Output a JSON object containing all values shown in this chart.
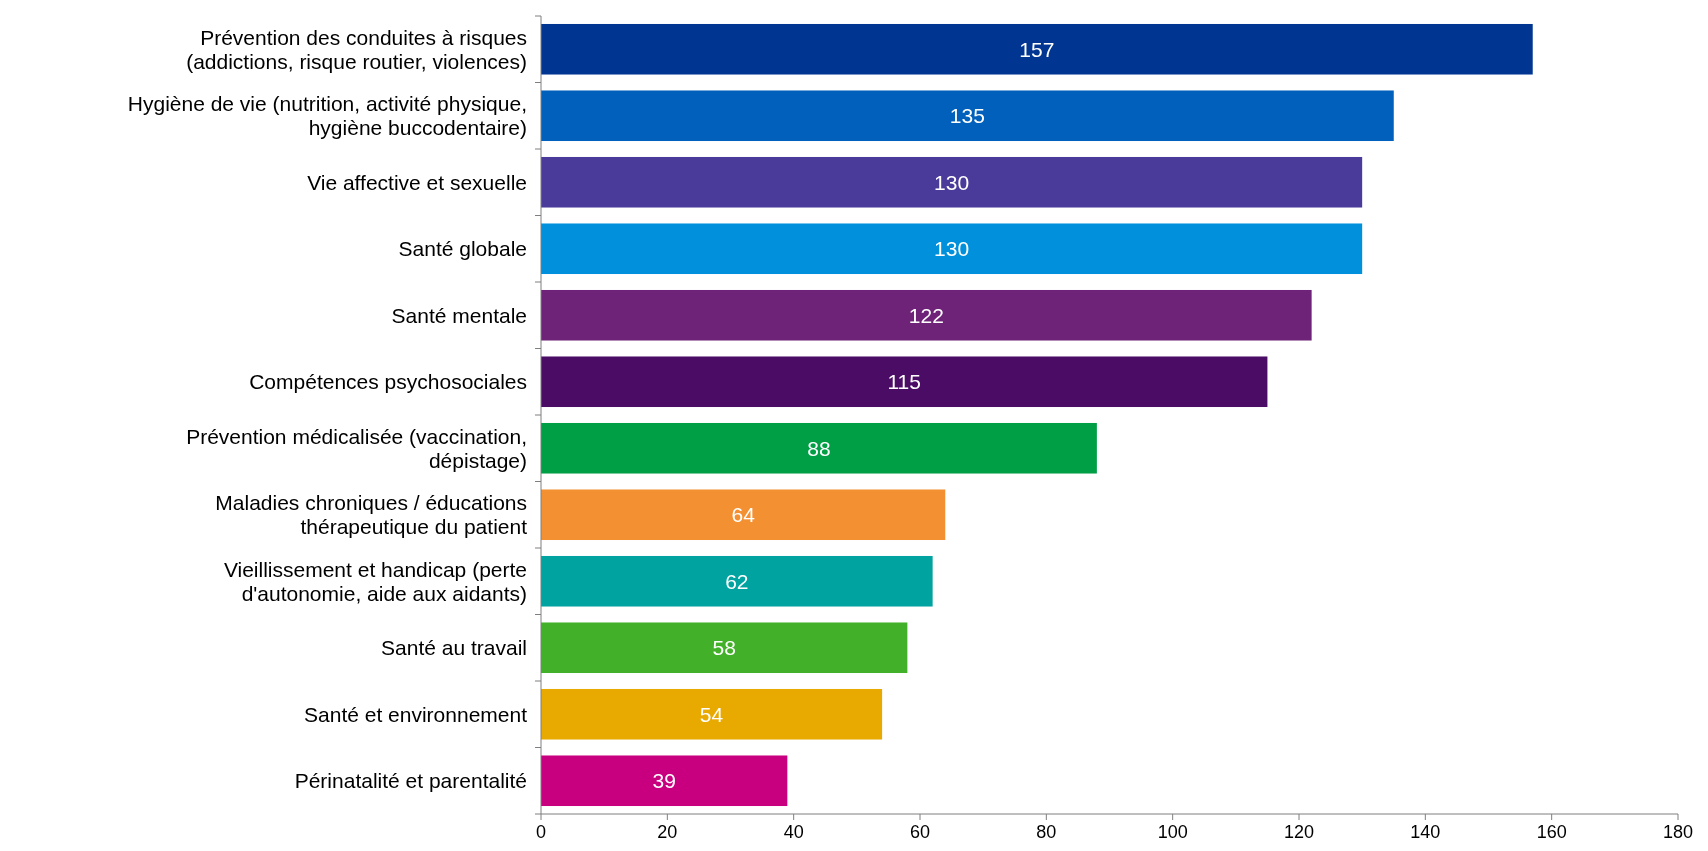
{
  "chart_data": {
    "type": "bar",
    "orientation": "horizontal",
    "categories": [
      "Prévention des conduites à risques\n(addictions, risque routier, violences)",
      "Hygiène de vie (nutrition, activité physique,\nhygiène buccodentaire)",
      "Vie affective et sexuelle",
      "Santé globale",
      "Santé mentale",
      "Compétences psychosociales",
      "Prévention médicalisée (vaccination,\ndépistage)",
      "Maladies chroniques / éducations\nthérapeutique du patient",
      "Vieillissement et handicap (perte\nd'autonomie, aide aux aidants)",
      "Santé au travail",
      "Santé et environnement",
      "Périnatalité et parentalité"
    ],
    "values": [
      157,
      135,
      130,
      130,
      122,
      115,
      88,
      64,
      62,
      58,
      54,
      39
    ],
    "colors": [
      "#003591",
      "#0060bb",
      "#4a3a9a",
      "#0090dc",
      "#6e2378",
      "#4b0c66",
      "#009e45",
      "#f39031",
      "#00a3a0",
      "#43b02a",
      "#e8a900",
      "#c8007f"
    ],
    "xlim": [
      0,
      180
    ],
    "xticks": [
      0,
      20,
      40,
      60,
      80,
      100,
      120,
      140,
      160,
      180
    ],
    "data_labels": true
  }
}
